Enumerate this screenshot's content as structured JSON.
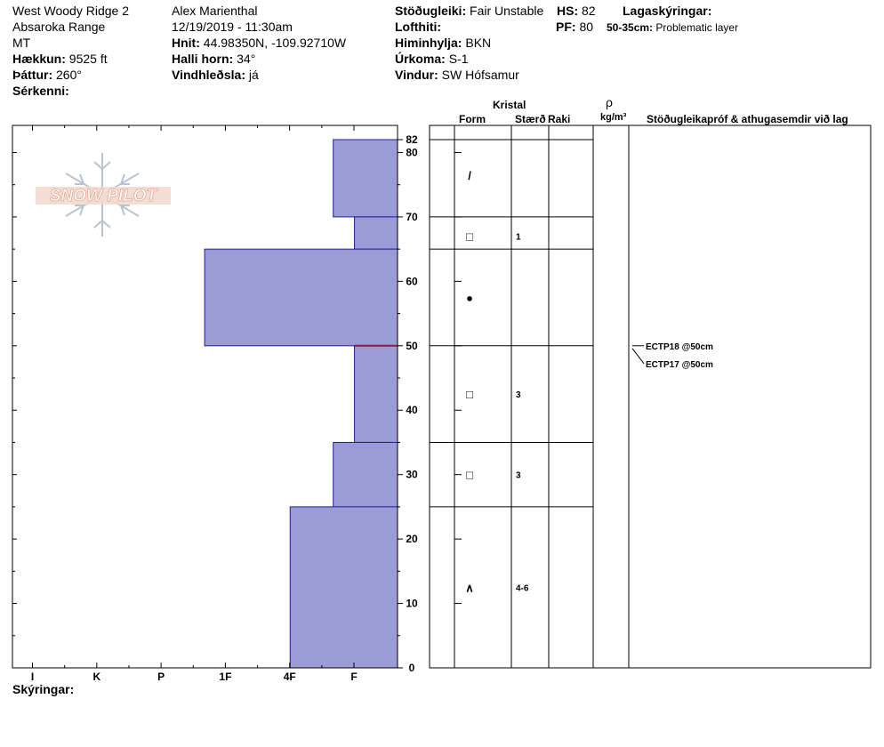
{
  "header": {
    "col1": {
      "location": "West Woody Ridge 2",
      "range": "Absaroka Range",
      "state": "MT",
      "elevation_label": "Hækkun:",
      "elevation_value": "9525 ft",
      "aspect_label": "Þáttur:",
      "aspect_value": "260°",
      "features_label": "Sérkenni:"
    },
    "col2": {
      "observer": "Alex Marienthal",
      "datetime": "12/19/2019 - 11:30am",
      "coords_label": "Hnit:",
      "coords_value": "44.98350N, -109.92710W",
      "slope_label": "Halli horn:",
      "slope_value": "34°",
      "wind_loading_label": "Vindhleðsla:",
      "wind_loading_value": "já"
    },
    "col3": {
      "stability_label": "Stöðugleiki:",
      "stability_value": "Fair Unstable",
      "air_temp_label": "Lofthiti:",
      "sky_label": "Himinhylja:",
      "sky_value": "BKN",
      "precip_label": "Úrkoma:",
      "precip_value": "S-1",
      "wind_label": "Vindur:",
      "wind_value": "SW Hófsamur"
    },
    "col4": {
      "hs_label": "HS:",
      "hs_value": "82",
      "pf_label": "PF:",
      "pf_value": "80"
    },
    "legend": {
      "title": "Lagaskýringar:",
      "items": [
        {
          "range": "50-35cm:",
          "text": "Problematic layer"
        }
      ]
    }
  },
  "logo": {
    "text": "SNOW PILOT"
  },
  "chart_data": {
    "type": "bar",
    "title": "",
    "hardness_scale": [
      "I",
      "K",
      "P",
      "1F",
      "4F",
      "F"
    ],
    "y_ticks": [
      0,
      10,
      20,
      30,
      40,
      50,
      60,
      70,
      80
    ],
    "y_top_label": "82",
    "ylim": [
      0,
      82
    ],
    "fill_color": "#9b9bd6",
    "layers": [
      {
        "top": 82,
        "bottom": 70,
        "hardness_units": 1.0
      },
      {
        "top": 70,
        "bottom": 65,
        "hardness_units": 0.67
      },
      {
        "top": 65,
        "bottom": 50,
        "hardness_units": 3.0
      },
      {
        "top": 50,
        "bottom": 35,
        "hardness_units": 0.67
      },
      {
        "top": 35,
        "bottom": 25,
        "hardness_units": 1.0
      },
      {
        "top": 25,
        "bottom": 0,
        "hardness_units": 1.67
      }
    ],
    "problem_line_depth": 50
  },
  "table": {
    "kristal": "Kristal",
    "form": "Form",
    "size": "Stærð",
    "moisture": "Raki",
    "rho": "ρ",
    "density_unit": "kg/m³",
    "tests_header": "Stöðugleikapróf & athugasemdir við lag",
    "boundaries": [
      82,
      70,
      65,
      50,
      35,
      25,
      0
    ],
    "rows": [
      {
        "mid": 76.5,
        "form": "/",
        "size": ""
      },
      {
        "mid": 67,
        "form": "□",
        "size": "1"
      },
      {
        "mid": 57.5,
        "form": "●",
        "size": ""
      },
      {
        "mid": 42.5,
        "form": "□",
        "size": "3"
      },
      {
        "mid": 30,
        "form": "□",
        "size": "3"
      },
      {
        "mid": 12.5,
        "form": "∧",
        "size": "4-6"
      }
    ],
    "tests": [
      {
        "depth": 50,
        "text": "ECTP18 @50cm"
      },
      {
        "depth": 50,
        "text": "ECTP17 @50cm"
      }
    ]
  },
  "footer": {
    "notes_label": "Skýringar:"
  }
}
